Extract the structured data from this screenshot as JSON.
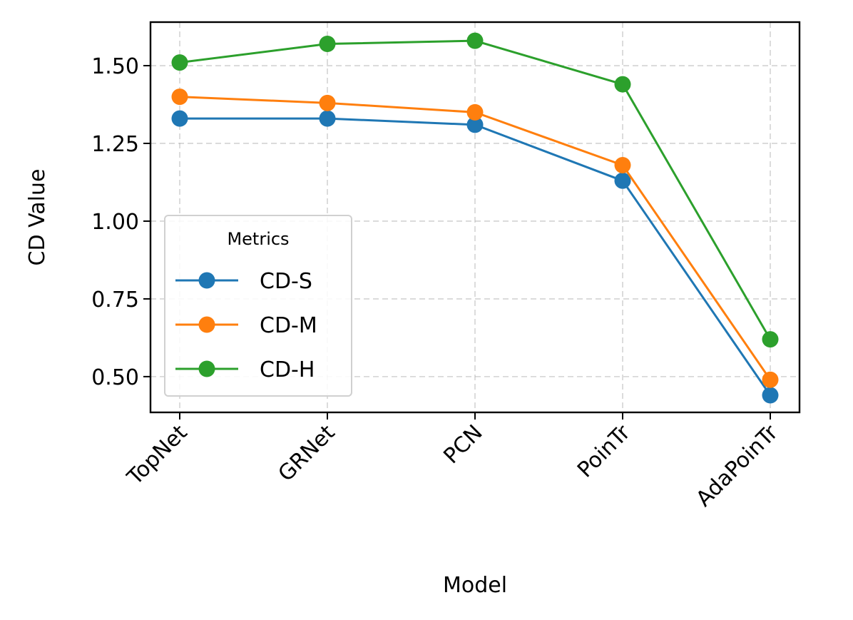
{
  "chart_data": {
    "type": "line",
    "title": "",
    "xlabel": "Model",
    "ylabel": "CD Value",
    "categories": [
      "TopNet",
      "GRNet",
      "PCN",
      "PoinTr",
      "AdaPoinTr"
    ],
    "ylim": [
      0.385,
      1.64
    ],
    "yticks": [
      0.5,
      0.75,
      1.0,
      1.25,
      1.5
    ],
    "ytick_labels": [
      "0.50",
      "0.75",
      "1.00",
      "1.25",
      "1.50"
    ],
    "grid": true,
    "legend": {
      "title": "Metrics",
      "placement": "lower-left"
    },
    "series": [
      {
        "name": "CD-S",
        "color": "#1f77b4",
        "values": [
          1.33,
          1.33,
          1.31,
          1.13,
          0.44
        ]
      },
      {
        "name": "CD-M",
        "color": "#ff7f0e",
        "values": [
          1.4,
          1.38,
          1.35,
          1.18,
          0.49
        ]
      },
      {
        "name": "CD-H",
        "color": "#2ca02c",
        "values": [
          1.51,
          1.57,
          1.58,
          1.44,
          0.62
        ]
      }
    ]
  }
}
